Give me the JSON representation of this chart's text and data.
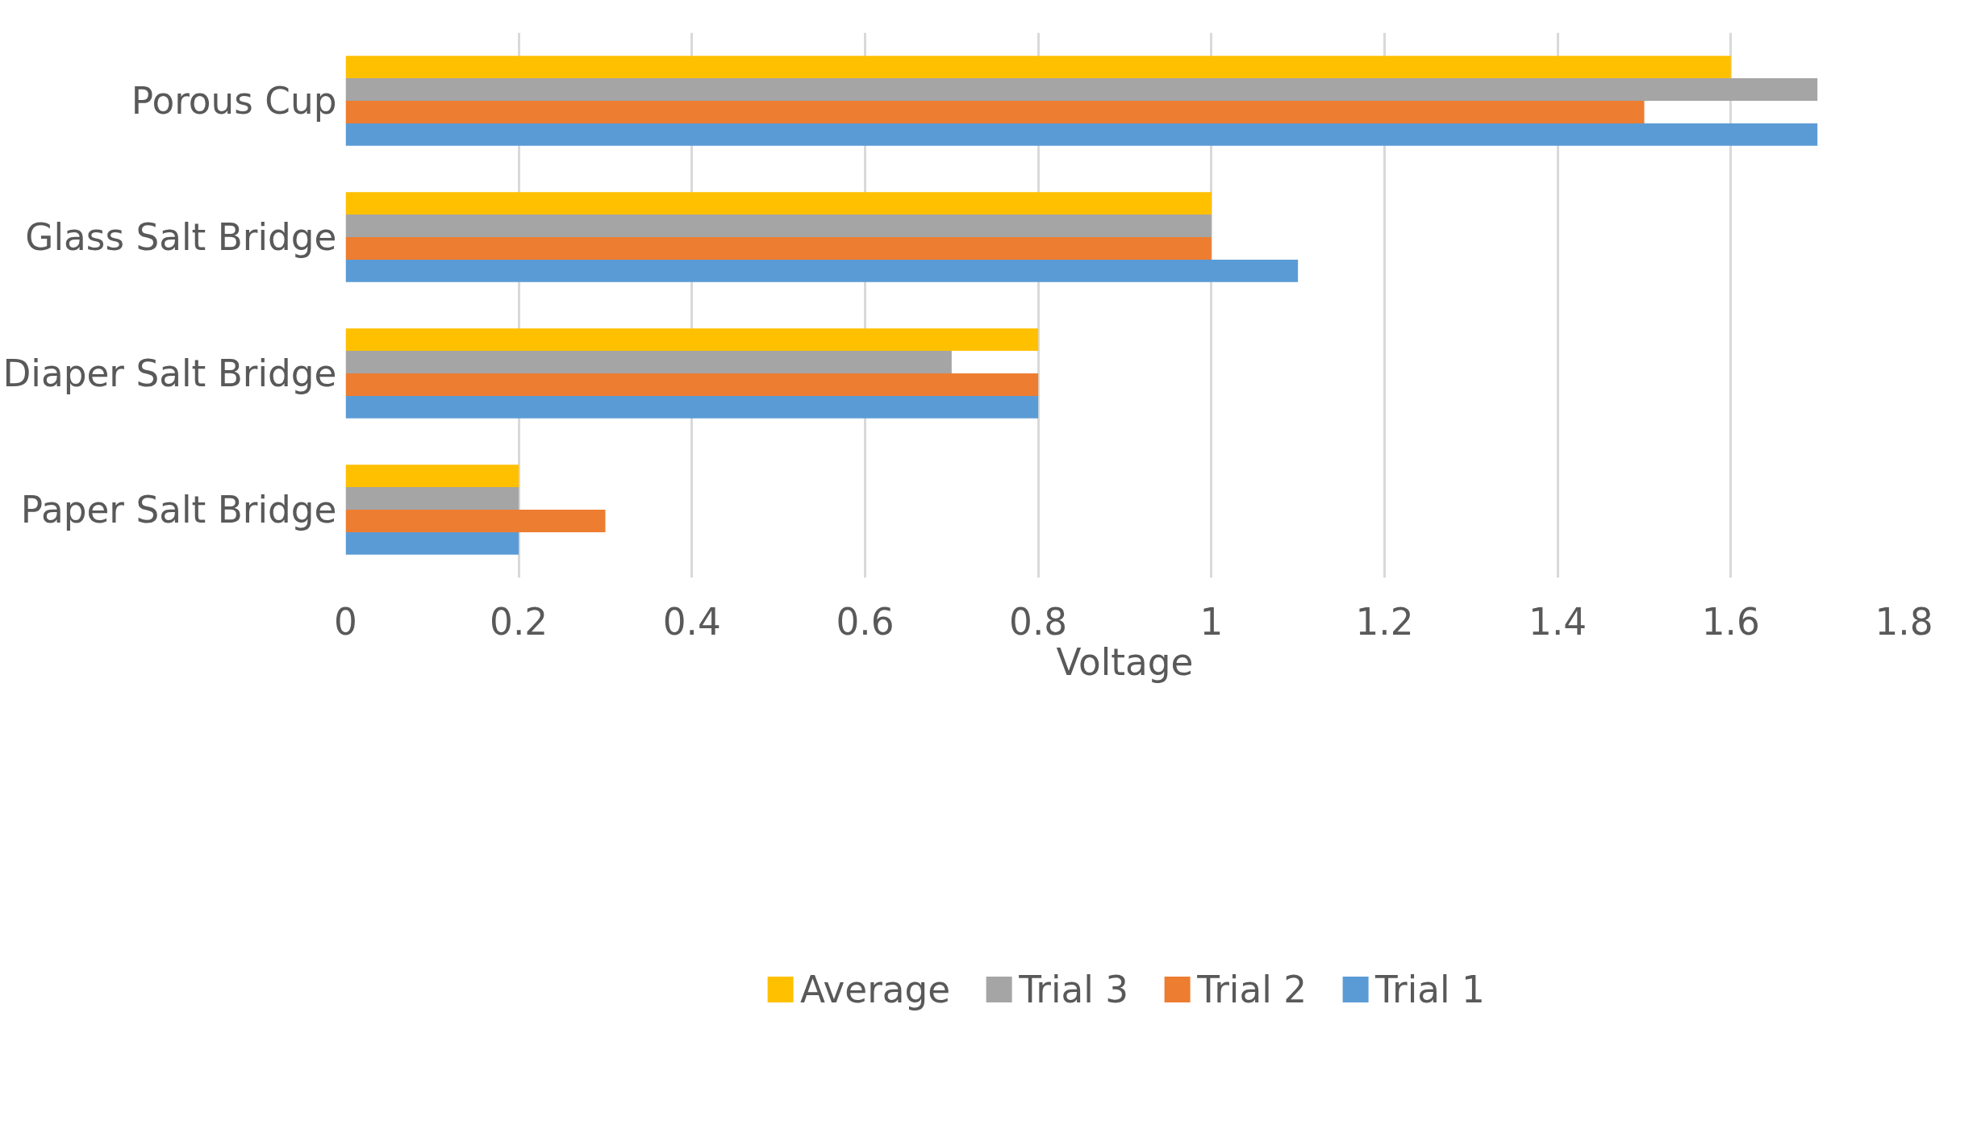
{
  "chart_data": {
    "type": "bar",
    "orientation": "horizontal",
    "xlabel": "Voltage",
    "categories": [
      "Porous Cup",
      "Glass Salt Bridge",
      "Diaper Salt Bridge",
      "Paper Salt Bridge"
    ],
    "series": [
      {
        "name": "Average",
        "color": "#ffc000",
        "values": [
          1.6,
          1.0,
          0.8,
          0.2
        ]
      },
      {
        "name": "Trial 3",
        "color": "#a5a5a5",
        "values": [
          1.7,
          1.0,
          0.7,
          0.2
        ]
      },
      {
        "name": "Trial 2",
        "color": "#ed7d31",
        "values": [
          1.5,
          1.0,
          0.8,
          0.3
        ]
      },
      {
        "name": "Trial 1",
        "color": "#5b9bd5",
        "values": [
          1.7,
          1.1,
          0.8,
          0.2
        ]
      }
    ],
    "xlim": [
      0,
      1.8
    ],
    "xticks": [
      0,
      0.2,
      0.4,
      0.6,
      0.8,
      1,
      1.2,
      1.4,
      1.6,
      1.8
    ],
    "grid": "x",
    "legend": "bottom"
  }
}
